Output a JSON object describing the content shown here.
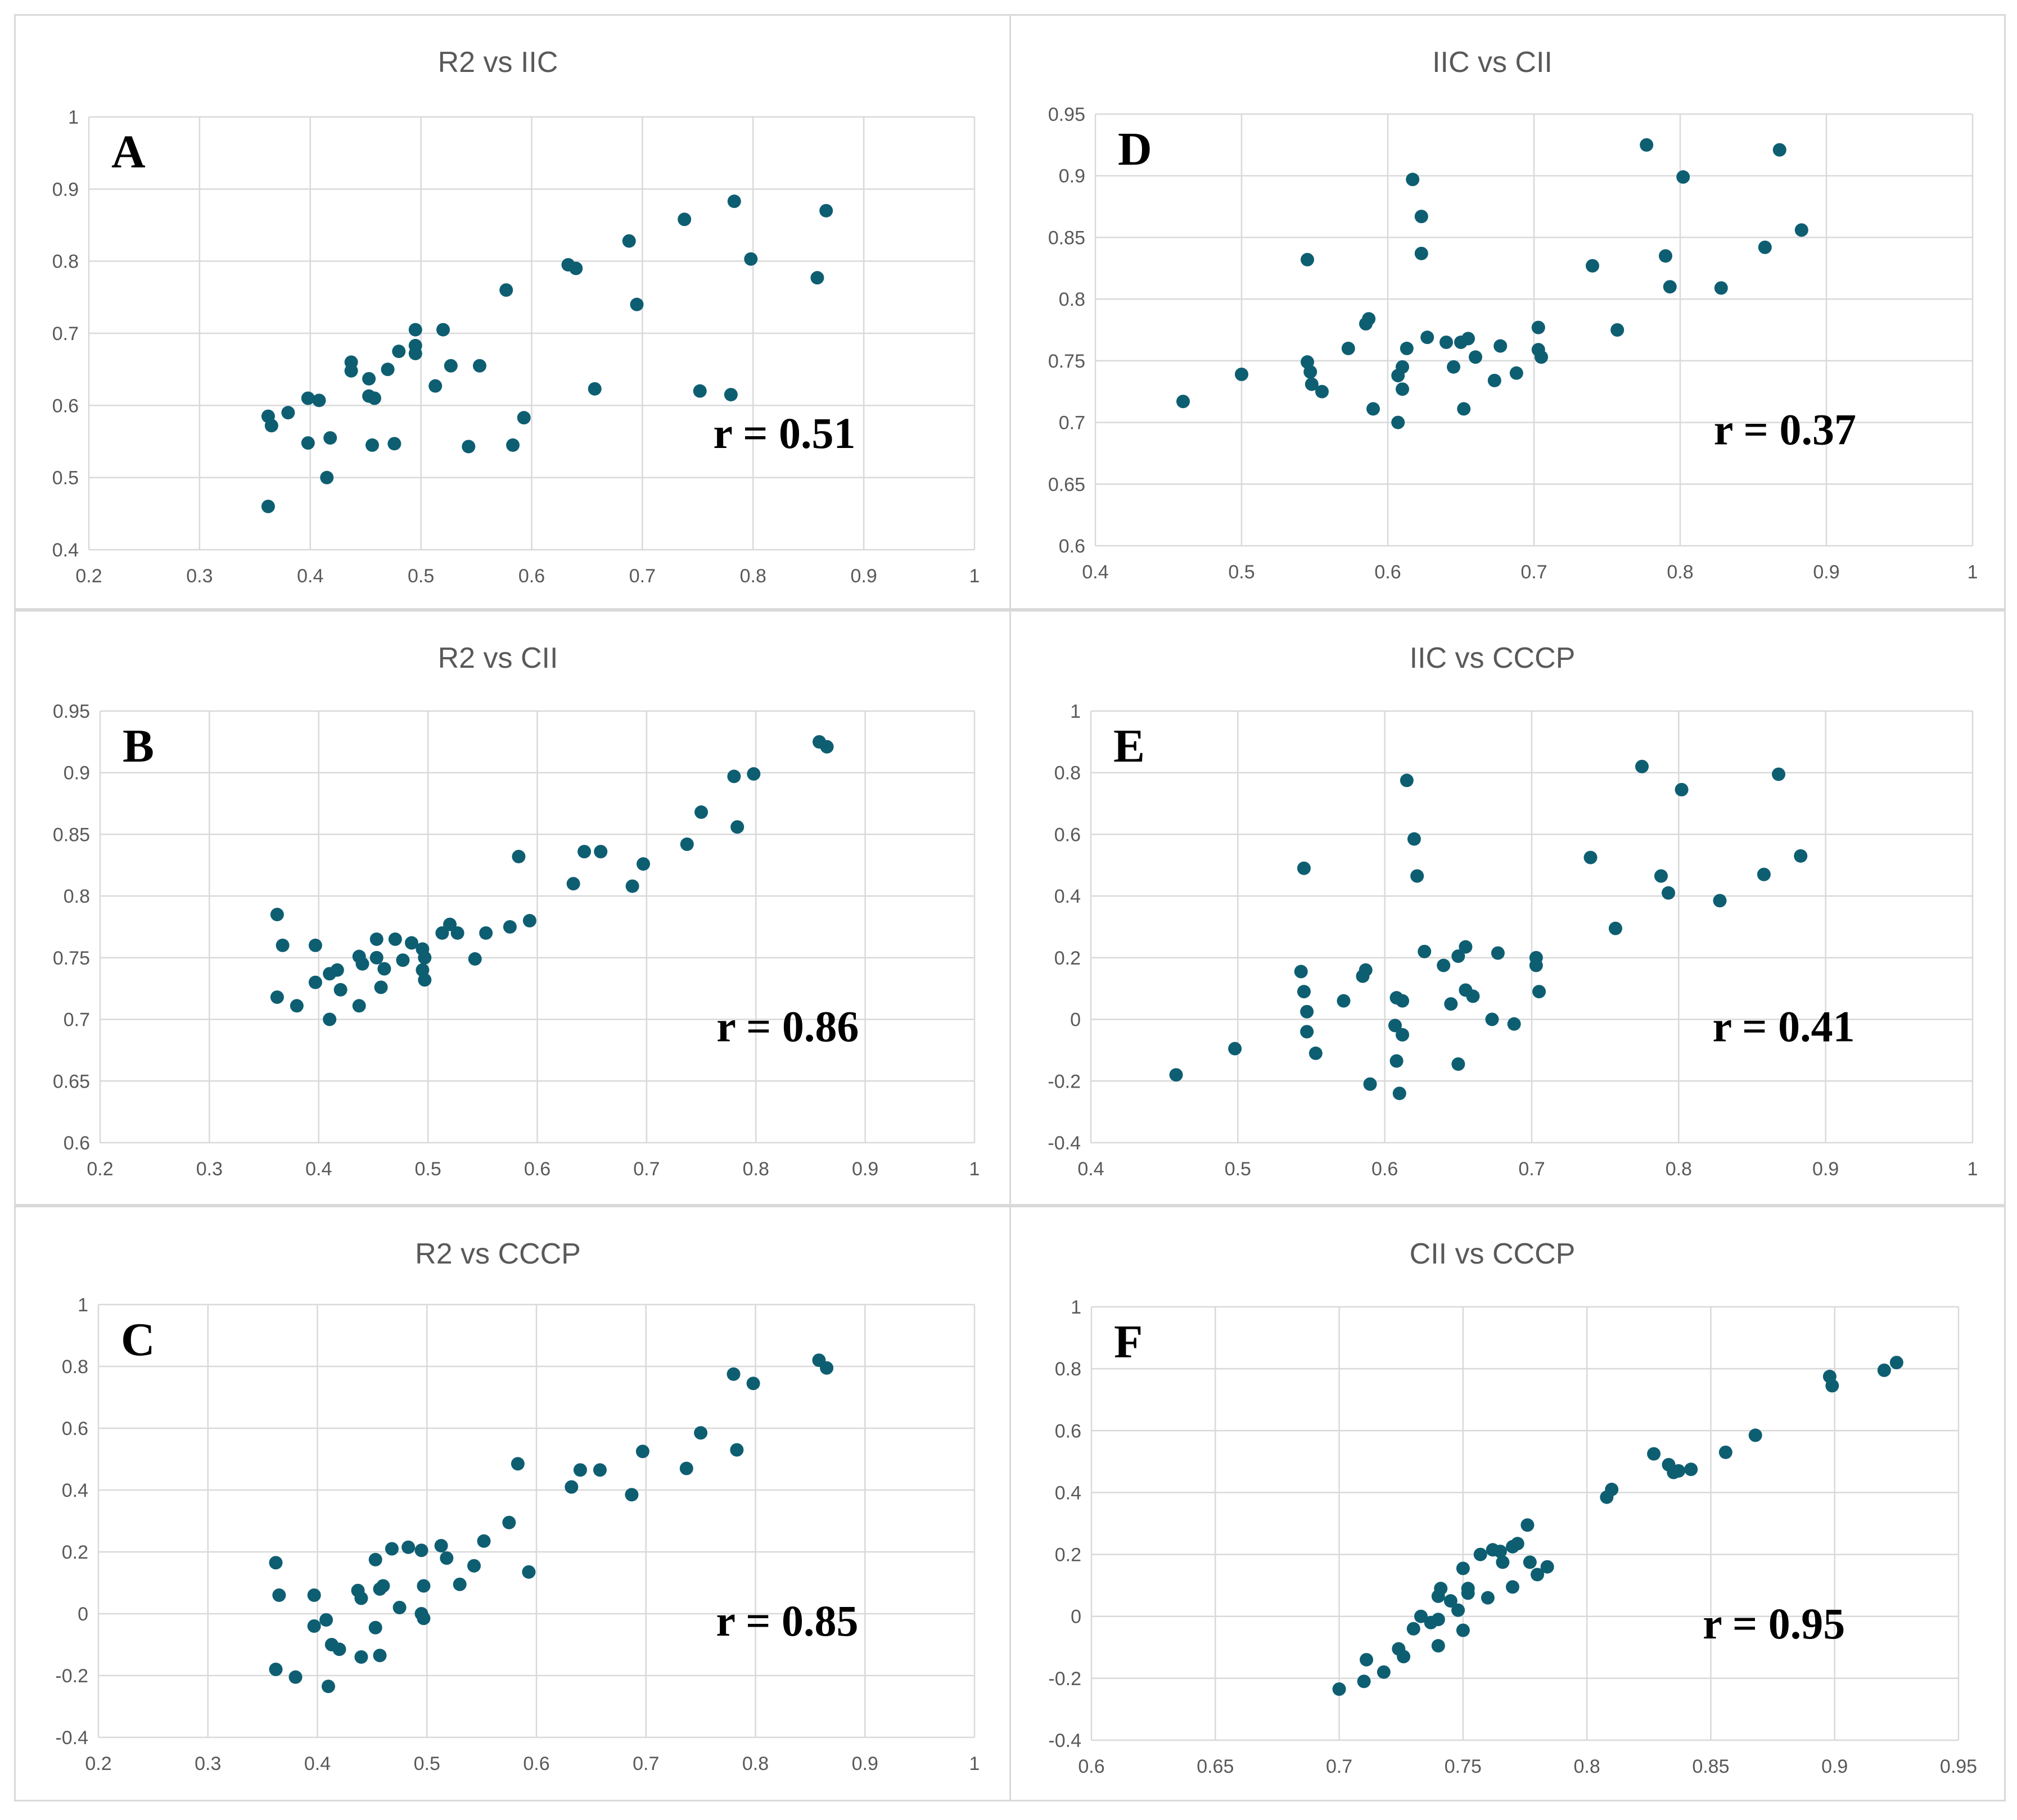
{
  "colors": {
    "point": "#0e5e72",
    "grid": "#d9d9d9",
    "text": "#595959"
  },
  "chart_data": [
    {
      "id": "A",
      "type": "scatter",
      "title": "R2 vs IIC",
      "letter": "A",
      "correlation": "r = 0.51",
      "xlim": [
        0.2,
        1
      ],
      "ylim": [
        0.4,
        1
      ],
      "x_ticks": [
        "0.2",
        "0.3",
        "0.4",
        "0.5",
        "0.6",
        "0.7",
        "0.8",
        "0.9",
        "1"
      ],
      "y_ticks": [
        "0.4",
        "0.5",
        "0.6",
        "0.7",
        "0.8",
        "0.9",
        "1"
      ],
      "points": [
        [
          0.362,
          0.46
        ],
        [
          0.362,
          0.585
        ],
        [
          0.365,
          0.572
        ],
        [
          0.38,
          0.59
        ],
        [
          0.398,
          0.61
        ],
        [
          0.398,
          0.548
        ],
        [
          0.408,
          0.607
        ],
        [
          0.415,
          0.5
        ],
        [
          0.418,
          0.555
        ],
        [
          0.437,
          0.66
        ],
        [
          0.437,
          0.648
        ],
        [
          0.453,
          0.613
        ],
        [
          0.453,
          0.637
        ],
        [
          0.456,
          0.545
        ],
        [
          0.458,
          0.61
        ],
        [
          0.47,
          0.65
        ],
        [
          0.476,
          0.547
        ],
        [
          0.48,
          0.675
        ],
        [
          0.495,
          0.705
        ],
        [
          0.495,
          0.683
        ],
        [
          0.495,
          0.672
        ],
        [
          0.513,
          0.627
        ],
        [
          0.52,
          0.705
        ],
        [
          0.527,
          0.655
        ],
        [
          0.543,
          0.543
        ],
        [
          0.553,
          0.655
        ],
        [
          0.577,
          0.76
        ],
        [
          0.583,
          0.545
        ],
        [
          0.593,
          0.583
        ],
        [
          0.633,
          0.795
        ],
        [
          0.64,
          0.79
        ],
        [
          0.657,
          0.623
        ],
        [
          0.688,
          0.828
        ],
        [
          0.695,
          0.74
        ],
        [
          0.738,
          0.858
        ],
        [
          0.752,
          0.62
        ],
        [
          0.78,
          0.615
        ],
        [
          0.783,
          0.883
        ],
        [
          0.798,
          0.803
        ],
        [
          0.858,
          0.777
        ],
        [
          0.866,
          0.87
        ]
      ]
    },
    {
      "id": "D",
      "type": "scatter",
      "title": "IIC vs CII",
      "letter": "D",
      "correlation": "r = 0.37",
      "xlim": [
        0.4,
        1
      ],
      "ylim": [
        0.6,
        0.95
      ],
      "x_ticks": [
        "0.4",
        "0.5",
        "0.6",
        "0.7",
        "0.8",
        "0.9",
        "1"
      ],
      "y_ticks": [
        "0.6",
        "0.65",
        "0.7",
        "0.75",
        "0.8",
        "0.85",
        "0.9",
        "0.95"
      ],
      "points": [
        [
          0.46,
          0.717
        ],
        [
          0.5,
          0.739
        ],
        [
          0.545,
          0.832
        ],
        [
          0.545,
          0.749
        ],
        [
          0.547,
          0.741
        ],
        [
          0.548,
          0.731
        ],
        [
          0.555,
          0.725
        ],
        [
          0.573,
          0.76
        ],
        [
          0.585,
          0.78
        ],
        [
          0.587,
          0.784
        ],
        [
          0.59,
          0.711
        ],
        [
          0.607,
          0.7
        ],
        [
          0.607,
          0.738
        ],
        [
          0.61,
          0.745
        ],
        [
          0.61,
          0.727
        ],
        [
          0.613,
          0.76
        ],
        [
          0.617,
          0.897
        ],
        [
          0.623,
          0.867
        ],
        [
          0.623,
          0.837
        ],
        [
          0.627,
          0.769
        ],
        [
          0.64,
          0.765
        ],
        [
          0.645,
          0.745
        ],
        [
          0.65,
          0.765
        ],
        [
          0.652,
          0.711
        ],
        [
          0.655,
          0.768
        ],
        [
          0.66,
          0.753
        ],
        [
          0.673,
          0.734
        ],
        [
          0.677,
          0.762
        ],
        [
          0.688,
          0.74
        ],
        [
          0.703,
          0.777
        ],
        [
          0.703,
          0.759
        ],
        [
          0.705,
          0.753
        ],
        [
          0.74,
          0.827
        ],
        [
          0.757,
          0.775
        ],
        [
          0.777,
          0.925
        ],
        [
          0.79,
          0.835
        ],
        [
          0.793,
          0.81
        ],
        [
          0.802,
          0.899
        ],
        [
          0.828,
          0.809
        ],
        [
          0.858,
          0.842
        ],
        [
          0.868,
          0.921
        ],
        [
          0.883,
          0.856
        ]
      ]
    },
    {
      "id": "B",
      "type": "scatter",
      "title": "R2 vs CII",
      "letter": "B",
      "correlation": "r = 0.86",
      "xlim": [
        0.2,
        1
      ],
      "ylim": [
        0.6,
        0.95
      ],
      "x_ticks": [
        "0.2",
        "0.3",
        "0.4",
        "0.5",
        "0.6",
        "0.7",
        "0.8",
        "0.9",
        "1"
      ],
      "y_ticks": [
        "0.6",
        "0.65",
        "0.7",
        "0.75",
        "0.8",
        "0.85",
        "0.9",
        "0.95"
      ],
      "points": [
        [
          0.362,
          0.785
        ],
        [
          0.362,
          0.718
        ],
        [
          0.367,
          0.76
        ],
        [
          0.38,
          0.711
        ],
        [
          0.397,
          0.76
        ],
        [
          0.397,
          0.73
        ],
        [
          0.41,
          0.7
        ],
        [
          0.41,
          0.737
        ],
        [
          0.417,
          0.74
        ],
        [
          0.42,
          0.724
        ],
        [
          0.437,
          0.711
        ],
        [
          0.437,
          0.751
        ],
        [
          0.44,
          0.745
        ],
        [
          0.453,
          0.765
        ],
        [
          0.453,
          0.75
        ],
        [
          0.457,
          0.726
        ],
        [
          0.46,
          0.741
        ],
        [
          0.47,
          0.765
        ],
        [
          0.477,
          0.748
        ],
        [
          0.485,
          0.762
        ],
        [
          0.495,
          0.757
        ],
        [
          0.495,
          0.74
        ],
        [
          0.497,
          0.732
        ],
        [
          0.497,
          0.75
        ],
        [
          0.513,
          0.77
        ],
        [
          0.52,
          0.777
        ],
        [
          0.527,
          0.77
        ],
        [
          0.543,
          0.749
        ],
        [
          0.553,
          0.77
        ],
        [
          0.575,
          0.775
        ],
        [
          0.583,
          0.832
        ],
        [
          0.593,
          0.78
        ],
        [
          0.633,
          0.81
        ],
        [
          0.643,
          0.836
        ],
        [
          0.658,
          0.836
        ],
        [
          0.687,
          0.808
        ],
        [
          0.697,
          0.826
        ],
        [
          0.737,
          0.842
        ],
        [
          0.75,
          0.868
        ],
        [
          0.78,
          0.897
        ],
        [
          0.783,
          0.856
        ],
        [
          0.798,
          0.899
        ],
        [
          0.858,
          0.925
        ],
        [
          0.865,
          0.921
        ]
      ]
    },
    {
      "id": "E",
      "type": "scatter",
      "title": "IIC vs CCCP",
      "letter": "E",
      "correlation": "r = 0.41",
      "xlim": [
        0.4,
        1
      ],
      "ylim": [
        -0.4,
        1
      ],
      "x_ticks": [
        "0.4",
        "0.5",
        "0.6",
        "0.7",
        "0.8",
        "0.9",
        "1"
      ],
      "y_ticks": [
        "-0.4",
        "-0.2",
        "0",
        "0.2",
        "0.4",
        "0.6",
        "0.8",
        "1"
      ],
      "points": [
        [
          0.458,
          -0.18
        ],
        [
          0.498,
          -0.095
        ],
        [
          0.545,
          0.49
        ],
        [
          0.543,
          0.155
        ],
        [
          0.545,
          0.09
        ],
        [
          0.547,
          0.025
        ],
        [
          0.547,
          -0.04
        ],
        [
          0.553,
          -0.11
        ],
        [
          0.572,
          0.06
        ],
        [
          0.585,
          0.14
        ],
        [
          0.587,
          0.16
        ],
        [
          0.59,
          -0.21
        ],
        [
          0.607,
          -0.02
        ],
        [
          0.608,
          0.07
        ],
        [
          0.608,
          -0.135
        ],
        [
          0.61,
          -0.24
        ],
        [
          0.612,
          0.06
        ],
        [
          0.612,
          -0.05
        ],
        [
          0.615,
          0.775
        ],
        [
          0.62,
          0.585
        ],
        [
          0.622,
          0.465
        ],
        [
          0.627,
          0.22
        ],
        [
          0.64,
          0.175
        ],
        [
          0.645,
          0.05
        ],
        [
          0.65,
          0.205
        ],
        [
          0.65,
          -0.145
        ],
        [
          0.655,
          0.235
        ],
        [
          0.655,
          0.095
        ],
        [
          0.66,
          0.075
        ],
        [
          0.673,
          0.0
        ],
        [
          0.677,
          0.215
        ],
        [
          0.688,
          -0.015
        ],
        [
          0.703,
          0.2
        ],
        [
          0.703,
          0.175
        ],
        [
          0.705,
          0.09
        ],
        [
          0.74,
          0.525
        ],
        [
          0.757,
          0.295
        ],
        [
          0.775,
          0.82
        ],
        [
          0.788,
          0.465
        ],
        [
          0.793,
          0.41
        ],
        [
          0.802,
          0.745
        ],
        [
          0.828,
          0.385
        ],
        [
          0.858,
          0.47
        ],
        [
          0.868,
          0.795
        ],
        [
          0.883,
          0.53
        ]
      ]
    },
    {
      "id": "C",
      "type": "scatter",
      "title": "R2 vs CCCP",
      "letter": "C",
      "correlation": "r = 0.85",
      "xlim": [
        0.2,
        1
      ],
      "ylim": [
        -0.4,
        1
      ],
      "x_ticks": [
        "0.2",
        "0.3",
        "0.4",
        "0.5",
        "0.6",
        "0.7",
        "0.8",
        "0.9",
        "1"
      ],
      "y_ticks": [
        "-0.4",
        "-0.2",
        "0",
        "0.2",
        "0.4",
        "0.6",
        "0.8",
        "1"
      ],
      "points": [
        [
          0.362,
          0.165
        ],
        [
          0.362,
          -0.18
        ],
        [
          0.365,
          0.06
        ],
        [
          0.38,
          -0.205
        ],
        [
          0.397,
          0.06
        ],
        [
          0.397,
          -0.04
        ],
        [
          0.408,
          -0.02
        ],
        [
          0.41,
          -0.235
        ],
        [
          0.413,
          -0.1
        ],
        [
          0.42,
          -0.115
        ],
        [
          0.437,
          0.075
        ],
        [
          0.44,
          -0.14
        ],
        [
          0.44,
          0.05
        ],
        [
          0.453,
          0.175
        ],
        [
          0.453,
          -0.045
        ],
        [
          0.457,
          0.08
        ],
        [
          0.457,
          -0.135
        ],
        [
          0.46,
          0.09
        ],
        [
          0.468,
          0.21
        ],
        [
          0.475,
          0.02
        ],
        [
          0.483,
          0.215
        ],
        [
          0.495,
          0.205
        ],
        [
          0.495,
          0.0
        ],
        [
          0.497,
          -0.015
        ],
        [
          0.497,
          0.09
        ],
        [
          0.513,
          0.22
        ],
        [
          0.518,
          0.18
        ],
        [
          0.53,
          0.095
        ],
        [
          0.543,
          0.155
        ],
        [
          0.552,
          0.235
        ],
        [
          0.575,
          0.295
        ],
        [
          0.583,
          0.485
        ],
        [
          0.593,
          0.135
        ],
        [
          0.632,
          0.41
        ],
        [
          0.64,
          0.465
        ],
        [
          0.658,
          0.465
        ],
        [
          0.687,
          0.385
        ],
        [
          0.697,
          0.525
        ],
        [
          0.737,
          0.47
        ],
        [
          0.75,
          0.585
        ],
        [
          0.78,
          0.775
        ],
        [
          0.783,
          0.53
        ],
        [
          0.798,
          0.745
        ],
        [
          0.858,
          0.82
        ],
        [
          0.865,
          0.795
        ]
      ]
    },
    {
      "id": "F",
      "type": "scatter",
      "title": "CII vs CCCP",
      "letter": "F",
      "correlation": "r = 0.95",
      "xlim": [
        0.6,
        0.95
      ],
      "ylim": [
        -0.4,
        1
      ],
      "x_ticks": [
        "0.6",
        "0.65",
        "0.7",
        "0.75",
        "0.8",
        "0.85",
        "0.9",
        "0.95"
      ],
      "y_ticks": [
        "-0.4",
        "-0.2",
        "0",
        "0.2",
        "0.4",
        "0.6",
        "0.8",
        "1"
      ],
      "points": [
        [
          0.7,
          -0.235
        ],
        [
          0.71,
          -0.21
        ],
        [
          0.711,
          -0.14
        ],
        [
          0.718,
          -0.18
        ],
        [
          0.724,
          -0.105
        ],
        [
          0.726,
          -0.13
        ],
        [
          0.73,
          -0.04
        ],
        [
          0.733,
          0.0
        ],
        [
          0.737,
          -0.02
        ],
        [
          0.74,
          0.065
        ],
        [
          0.74,
          -0.01
        ],
        [
          0.741,
          0.09
        ],
        [
          0.74,
          -0.095
        ],
        [
          0.745,
          0.05
        ],
        [
          0.748,
          0.02
        ],
        [
          0.75,
          0.155
        ],
        [
          0.75,
          -0.045
        ],
        [
          0.752,
          0.09
        ],
        [
          0.752,
          0.075
        ],
        [
          0.757,
          0.2
        ],
        [
          0.76,
          0.06
        ],
        [
          0.762,
          0.215
        ],
        [
          0.765,
          0.21
        ],
        [
          0.766,
          0.175
        ],
        [
          0.77,
          0.225
        ],
        [
          0.77,
          0.095
        ],
        [
          0.772,
          0.235
        ],
        [
          0.776,
          0.295
        ],
        [
          0.777,
          0.175
        ],
        [
          0.78,
          0.135
        ],
        [
          0.784,
          0.16
        ],
        [
          0.808,
          0.385
        ],
        [
          0.81,
          0.41
        ],
        [
          0.827,
          0.525
        ],
        [
          0.833,
          0.49
        ],
        [
          0.835,
          0.465
        ],
        [
          0.837,
          0.47
        ],
        [
          0.842,
          0.475
        ],
        [
          0.856,
          0.53
        ],
        [
          0.868,
          0.585
        ],
        [
          0.898,
          0.775
        ],
        [
          0.899,
          0.745
        ],
        [
          0.92,
          0.795
        ],
        [
          0.925,
          0.82
        ]
      ]
    }
  ]
}
